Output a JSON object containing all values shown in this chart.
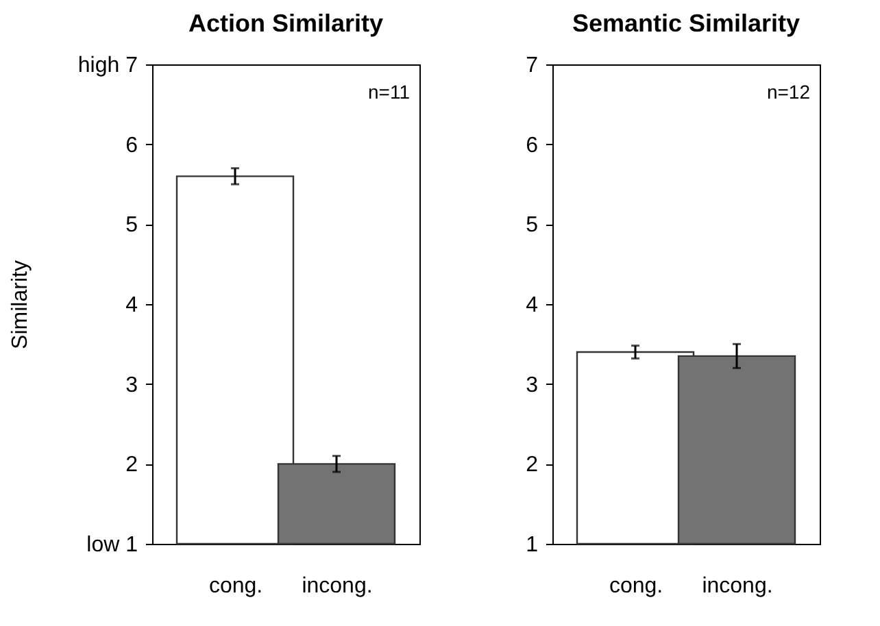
{
  "chart_data": [
    {
      "type": "bar",
      "title": "Action Similarity",
      "ylabel": "Similarity",
      "categories": [
        "cong.",
        "incong."
      ],
      "values": [
        5.6,
        2.0
      ],
      "colors": [
        "#ffffff",
        "#737373"
      ],
      "errors": [
        0.1,
        0.1
      ],
      "ylim": [
        1,
        7
      ],
      "yticks": [
        {
          "value": 1,
          "label": "low   1"
        },
        2,
        3,
        4,
        5,
        6,
        {
          "value": 7,
          "label": "high  7"
        }
      ],
      "annotations": [
        "n=11"
      ],
      "grid": false
    },
    {
      "type": "bar",
      "title": "Semantic Similarity",
      "categories": [
        "cong.",
        "incong."
      ],
      "values": [
        3.4,
        3.35
      ],
      "colors": [
        "#ffffff",
        "#737373"
      ],
      "errors": [
        0.08,
        0.15
      ],
      "ylim": [
        1,
        7
      ],
      "yticks": [
        1,
        2,
        3,
        4,
        5,
        6,
        7
      ],
      "annotations": [
        "n=12"
      ],
      "grid": false
    }
  ]
}
